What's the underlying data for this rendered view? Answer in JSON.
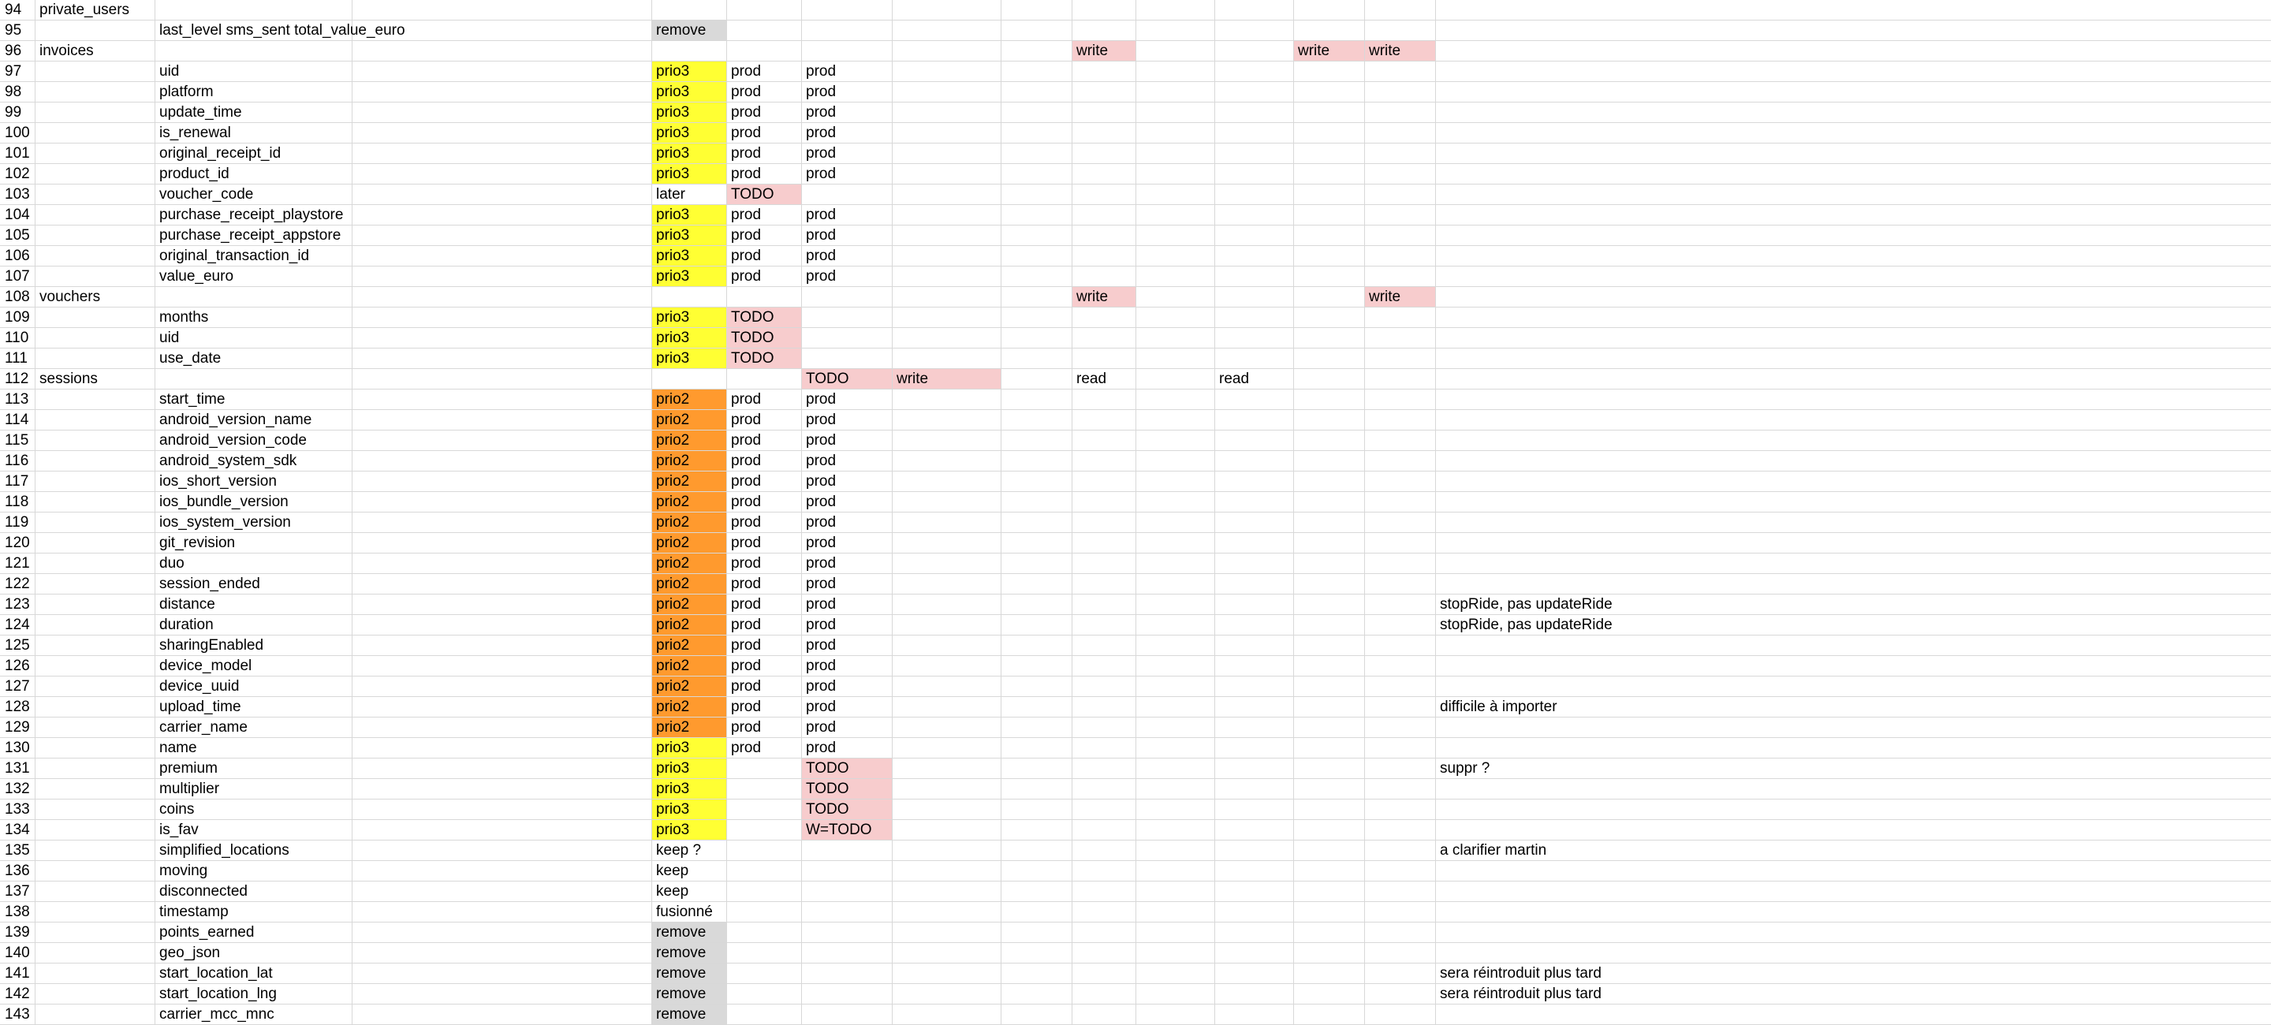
{
  "colors": {
    "prio3": "#ffff33",
    "prio2": "#ff9a2e",
    "todo_write": "#f7cccd",
    "remove": "#d9d9d9",
    "grid": "#d8d8d8"
  },
  "rows": [
    {
      "num": "94",
      "cells": [
        {
          "col": 0,
          "text": "private_users"
        }
      ]
    },
    {
      "num": "95",
      "cells": [
        {
          "col": 1,
          "text": "last_level sms_sent total_value_euro"
        },
        {
          "col": 3,
          "text": "remove",
          "bg": "gray"
        }
      ]
    },
    {
      "num": "96",
      "cells": [
        {
          "col": 0,
          "text": "invoices"
        },
        {
          "col": 8,
          "text": "write",
          "bg": "pink"
        },
        {
          "col": 11,
          "text": "write",
          "bg": "pink"
        },
        {
          "col": 12,
          "text": "write",
          "bg": "pink"
        }
      ]
    },
    {
      "num": "97",
      "cells": [
        {
          "col": 1,
          "text": "uid"
        },
        {
          "col": 3,
          "text": "prio3",
          "bg": "yellow"
        },
        {
          "col": 4,
          "text": "prod"
        },
        {
          "col": 5,
          "text": "prod"
        }
      ]
    },
    {
      "num": "98",
      "cells": [
        {
          "col": 1,
          "text": "platform"
        },
        {
          "col": 3,
          "text": "prio3",
          "bg": "yellow"
        },
        {
          "col": 4,
          "text": "prod"
        },
        {
          "col": 5,
          "text": "prod"
        }
      ]
    },
    {
      "num": "99",
      "cells": [
        {
          "col": 1,
          "text": "update_time"
        },
        {
          "col": 3,
          "text": "prio3",
          "bg": "yellow"
        },
        {
          "col": 4,
          "text": "prod"
        },
        {
          "col": 5,
          "text": "prod"
        }
      ]
    },
    {
      "num": "100",
      "cells": [
        {
          "col": 1,
          "text": "is_renewal"
        },
        {
          "col": 3,
          "text": "prio3",
          "bg": "yellow"
        },
        {
          "col": 4,
          "text": "prod"
        },
        {
          "col": 5,
          "text": "prod"
        }
      ]
    },
    {
      "num": "101",
      "cells": [
        {
          "col": 1,
          "text": "original_receipt_id"
        },
        {
          "col": 3,
          "text": "prio3",
          "bg": "yellow"
        },
        {
          "col": 4,
          "text": "prod"
        },
        {
          "col": 5,
          "text": "prod"
        }
      ]
    },
    {
      "num": "102",
      "cells": [
        {
          "col": 1,
          "text": "product_id"
        },
        {
          "col": 3,
          "text": "prio3",
          "bg": "yellow"
        },
        {
          "col": 4,
          "text": "prod"
        },
        {
          "col": 5,
          "text": "prod"
        }
      ]
    },
    {
      "num": "103",
      "cells": [
        {
          "col": 1,
          "text": "voucher_code"
        },
        {
          "col": 3,
          "text": "later"
        },
        {
          "col": 4,
          "text": "TODO",
          "bg": "pink"
        }
      ]
    },
    {
      "num": "104",
      "cells": [
        {
          "col": 1,
          "text": "purchase_receipt_playstore"
        },
        {
          "col": 3,
          "text": "prio3",
          "bg": "yellow"
        },
        {
          "col": 4,
          "text": "prod"
        },
        {
          "col": 5,
          "text": "prod"
        }
      ]
    },
    {
      "num": "105",
      "cells": [
        {
          "col": 1,
          "text": "purchase_receipt_appstore"
        },
        {
          "col": 3,
          "text": "prio3",
          "bg": "yellow"
        },
        {
          "col": 4,
          "text": "prod"
        },
        {
          "col": 5,
          "text": "prod"
        }
      ]
    },
    {
      "num": "106",
      "cells": [
        {
          "col": 1,
          "text": "original_transaction_id"
        },
        {
          "col": 3,
          "text": "prio3",
          "bg": "yellow"
        },
        {
          "col": 4,
          "text": "prod"
        },
        {
          "col": 5,
          "text": "prod"
        }
      ]
    },
    {
      "num": "107",
      "cells": [
        {
          "col": 1,
          "text": "value_euro"
        },
        {
          "col": 3,
          "text": "prio3",
          "bg": "yellow"
        },
        {
          "col": 4,
          "text": "prod"
        },
        {
          "col": 5,
          "text": "prod"
        }
      ]
    },
    {
      "num": "108",
      "cells": [
        {
          "col": 0,
          "text": "vouchers"
        },
        {
          "col": 8,
          "text": "write",
          "bg": "pink"
        },
        {
          "col": 12,
          "text": "write",
          "bg": "pink"
        }
      ]
    },
    {
      "num": "109",
      "cells": [
        {
          "col": 1,
          "text": "months"
        },
        {
          "col": 3,
          "text": "prio3",
          "bg": "yellow"
        },
        {
          "col": 4,
          "text": "TODO",
          "bg": "pink"
        }
      ]
    },
    {
      "num": "110",
      "cells": [
        {
          "col": 1,
          "text": "uid"
        },
        {
          "col": 3,
          "text": "prio3",
          "bg": "yellow"
        },
        {
          "col": 4,
          "text": "TODO",
          "bg": "pink"
        }
      ]
    },
    {
      "num": "111",
      "cells": [
        {
          "col": 1,
          "text": "use_date"
        },
        {
          "col": 3,
          "text": "prio3",
          "bg": "yellow"
        },
        {
          "col": 4,
          "text": "TODO",
          "bg": "pink"
        }
      ]
    },
    {
      "num": "112",
      "cells": [
        {
          "col": 0,
          "text": "sessions"
        },
        {
          "col": 5,
          "text": "TODO",
          "bg": "pink"
        },
        {
          "col": 6,
          "text": "write",
          "bg": "pink"
        },
        {
          "col": 8,
          "text": "read"
        },
        {
          "col": 10,
          "text": "read"
        }
      ]
    },
    {
      "num": "113",
      "cells": [
        {
          "col": 1,
          "text": "start_time"
        },
        {
          "col": 3,
          "text": "prio2",
          "bg": "orange"
        },
        {
          "col": 4,
          "text": "prod"
        },
        {
          "col": 5,
          "text": "prod"
        }
      ]
    },
    {
      "num": "114",
      "cells": [
        {
          "col": 1,
          "text": "android_version_name"
        },
        {
          "col": 3,
          "text": "prio2",
          "bg": "orange"
        },
        {
          "col": 4,
          "text": "prod"
        },
        {
          "col": 5,
          "text": "prod"
        }
      ]
    },
    {
      "num": "115",
      "cells": [
        {
          "col": 1,
          "text": "android_version_code"
        },
        {
          "col": 3,
          "text": "prio2",
          "bg": "orange"
        },
        {
          "col": 4,
          "text": "prod"
        },
        {
          "col": 5,
          "text": "prod"
        }
      ]
    },
    {
      "num": "116",
      "cells": [
        {
          "col": 1,
          "text": "android_system_sdk"
        },
        {
          "col": 3,
          "text": "prio2",
          "bg": "orange"
        },
        {
          "col": 4,
          "text": "prod"
        },
        {
          "col": 5,
          "text": "prod"
        }
      ]
    },
    {
      "num": "117",
      "cells": [
        {
          "col": 1,
          "text": "ios_short_version"
        },
        {
          "col": 3,
          "text": "prio2",
          "bg": "orange"
        },
        {
          "col": 4,
          "text": "prod"
        },
        {
          "col": 5,
          "text": "prod"
        }
      ]
    },
    {
      "num": "118",
      "cells": [
        {
          "col": 1,
          "text": "ios_bundle_version"
        },
        {
          "col": 3,
          "text": "prio2",
          "bg": "orange"
        },
        {
          "col": 4,
          "text": "prod"
        },
        {
          "col": 5,
          "text": "prod"
        }
      ]
    },
    {
      "num": "119",
      "cells": [
        {
          "col": 1,
          "text": "ios_system_version"
        },
        {
          "col": 3,
          "text": "prio2",
          "bg": "orange"
        },
        {
          "col": 4,
          "text": "prod"
        },
        {
          "col": 5,
          "text": "prod"
        }
      ]
    },
    {
      "num": "120",
      "cells": [
        {
          "col": 1,
          "text": "git_revision"
        },
        {
          "col": 3,
          "text": "prio2",
          "bg": "orange"
        },
        {
          "col": 4,
          "text": "prod"
        },
        {
          "col": 5,
          "text": "prod"
        }
      ]
    },
    {
      "num": "121",
      "cells": [
        {
          "col": 1,
          "text": "duo"
        },
        {
          "col": 3,
          "text": "prio2",
          "bg": "orange"
        },
        {
          "col": 4,
          "text": "prod"
        },
        {
          "col": 5,
          "text": "prod"
        }
      ]
    },
    {
      "num": "122",
      "cells": [
        {
          "col": 1,
          "text": "session_ended"
        },
        {
          "col": 3,
          "text": "prio2",
          "bg": "orange"
        },
        {
          "col": 4,
          "text": "prod"
        },
        {
          "col": 5,
          "text": "prod"
        }
      ]
    },
    {
      "num": "123",
      "cells": [
        {
          "col": 1,
          "text": "distance"
        },
        {
          "col": 3,
          "text": "prio2",
          "bg": "orange"
        },
        {
          "col": 4,
          "text": "prod"
        },
        {
          "col": 5,
          "text": "prod"
        },
        {
          "col": 13,
          "text": "stopRide, pas updateRide"
        }
      ]
    },
    {
      "num": "124",
      "cells": [
        {
          "col": 1,
          "text": "duration"
        },
        {
          "col": 3,
          "text": "prio2",
          "bg": "orange"
        },
        {
          "col": 4,
          "text": "prod"
        },
        {
          "col": 5,
          "text": "prod"
        },
        {
          "col": 13,
          "text": "stopRide, pas updateRide"
        }
      ]
    },
    {
      "num": "125",
      "cells": [
        {
          "col": 1,
          "text": "sharingEnabled"
        },
        {
          "col": 3,
          "text": "prio2",
          "bg": "orange"
        },
        {
          "col": 4,
          "text": "prod"
        },
        {
          "col": 5,
          "text": "prod"
        }
      ]
    },
    {
      "num": "126",
      "cells": [
        {
          "col": 1,
          "text": "device_model"
        },
        {
          "col": 3,
          "text": "prio2",
          "bg": "orange"
        },
        {
          "col": 4,
          "text": "prod"
        },
        {
          "col": 5,
          "text": "prod"
        }
      ]
    },
    {
      "num": "127",
      "cells": [
        {
          "col": 1,
          "text": "device_uuid"
        },
        {
          "col": 3,
          "text": "prio2",
          "bg": "orange"
        },
        {
          "col": 4,
          "text": "prod"
        },
        {
          "col": 5,
          "text": "prod"
        }
      ]
    },
    {
      "num": "128",
      "cells": [
        {
          "col": 1,
          "text": "upload_time"
        },
        {
          "col": 3,
          "text": "prio2",
          "bg": "orange"
        },
        {
          "col": 4,
          "text": "prod"
        },
        {
          "col": 5,
          "text": "prod"
        },
        {
          "col": 13,
          "text": "difficile à importer"
        }
      ]
    },
    {
      "num": "129",
      "cells": [
        {
          "col": 1,
          "text": "carrier_name"
        },
        {
          "col": 3,
          "text": "prio2",
          "bg": "orange"
        },
        {
          "col": 4,
          "text": "prod"
        },
        {
          "col": 5,
          "text": "prod"
        }
      ]
    },
    {
      "num": "130",
      "cells": [
        {
          "col": 1,
          "text": "name"
        },
        {
          "col": 3,
          "text": "prio3",
          "bg": "yellow"
        },
        {
          "col": 4,
          "text": "prod"
        },
        {
          "col": 5,
          "text": "prod"
        }
      ]
    },
    {
      "num": "131",
      "cells": [
        {
          "col": 1,
          "text": "premium"
        },
        {
          "col": 3,
          "text": "prio3",
          "bg": "yellow"
        },
        {
          "col": 5,
          "text": "TODO",
          "bg": "pink"
        },
        {
          "col": 13,
          "text": "suppr ?"
        }
      ]
    },
    {
      "num": "132",
      "cells": [
        {
          "col": 1,
          "text": "multiplier"
        },
        {
          "col": 3,
          "text": "prio3",
          "bg": "yellow"
        },
        {
          "col": 5,
          "text": "TODO",
          "bg": "pink"
        }
      ]
    },
    {
      "num": "133",
      "cells": [
        {
          "col": 1,
          "text": "coins"
        },
        {
          "col": 3,
          "text": "prio3",
          "bg": "yellow"
        },
        {
          "col": 5,
          "text": "TODO",
          "bg": "pink"
        }
      ]
    },
    {
      "num": "134",
      "cells": [
        {
          "col": 1,
          "text": "is_fav"
        },
        {
          "col": 3,
          "text": "prio3",
          "bg": "yellow"
        },
        {
          "col": 5,
          "text": "W=TODO",
          "bg": "pink"
        }
      ]
    },
    {
      "num": "135",
      "cells": [
        {
          "col": 1,
          "text": "simplified_locations"
        },
        {
          "col": 3,
          "text": "keep ?"
        },
        {
          "col": 13,
          "text": "a clarifier martin"
        }
      ]
    },
    {
      "num": "136",
      "cells": [
        {
          "col": 1,
          "text": "moving"
        },
        {
          "col": 3,
          "text": "keep"
        }
      ]
    },
    {
      "num": "137",
      "cells": [
        {
          "col": 1,
          "text": "disconnected"
        },
        {
          "col": 3,
          "text": "keep"
        }
      ]
    },
    {
      "num": "138",
      "cells": [
        {
          "col": 1,
          "text": "timestamp"
        },
        {
          "col": 3,
          "text": "fusionné"
        }
      ]
    },
    {
      "num": "139",
      "cells": [
        {
          "col": 1,
          "text": "points_earned"
        },
        {
          "col": 3,
          "text": "remove",
          "bg": "gray"
        }
      ]
    },
    {
      "num": "140",
      "cells": [
        {
          "col": 1,
          "text": "geo_json"
        },
        {
          "col": 3,
          "text": "remove",
          "bg": "gray"
        }
      ]
    },
    {
      "num": "141",
      "cells": [
        {
          "col": 1,
          "text": "start_location_lat"
        },
        {
          "col": 3,
          "text": "remove",
          "bg": "gray"
        },
        {
          "col": 13,
          "text": "sera réintroduit plus tard"
        }
      ]
    },
    {
      "num": "142",
      "cells": [
        {
          "col": 1,
          "text": "start_location_lng"
        },
        {
          "col": 3,
          "text": "remove",
          "bg": "gray"
        },
        {
          "col": 13,
          "text": "sera réintroduit plus tard"
        }
      ]
    },
    {
      "num": "143",
      "cells": [
        {
          "col": 1,
          "text": "carrier_mcc_mnc"
        },
        {
          "col": 3,
          "text": "remove",
          "bg": "gray"
        }
      ]
    }
  ]
}
